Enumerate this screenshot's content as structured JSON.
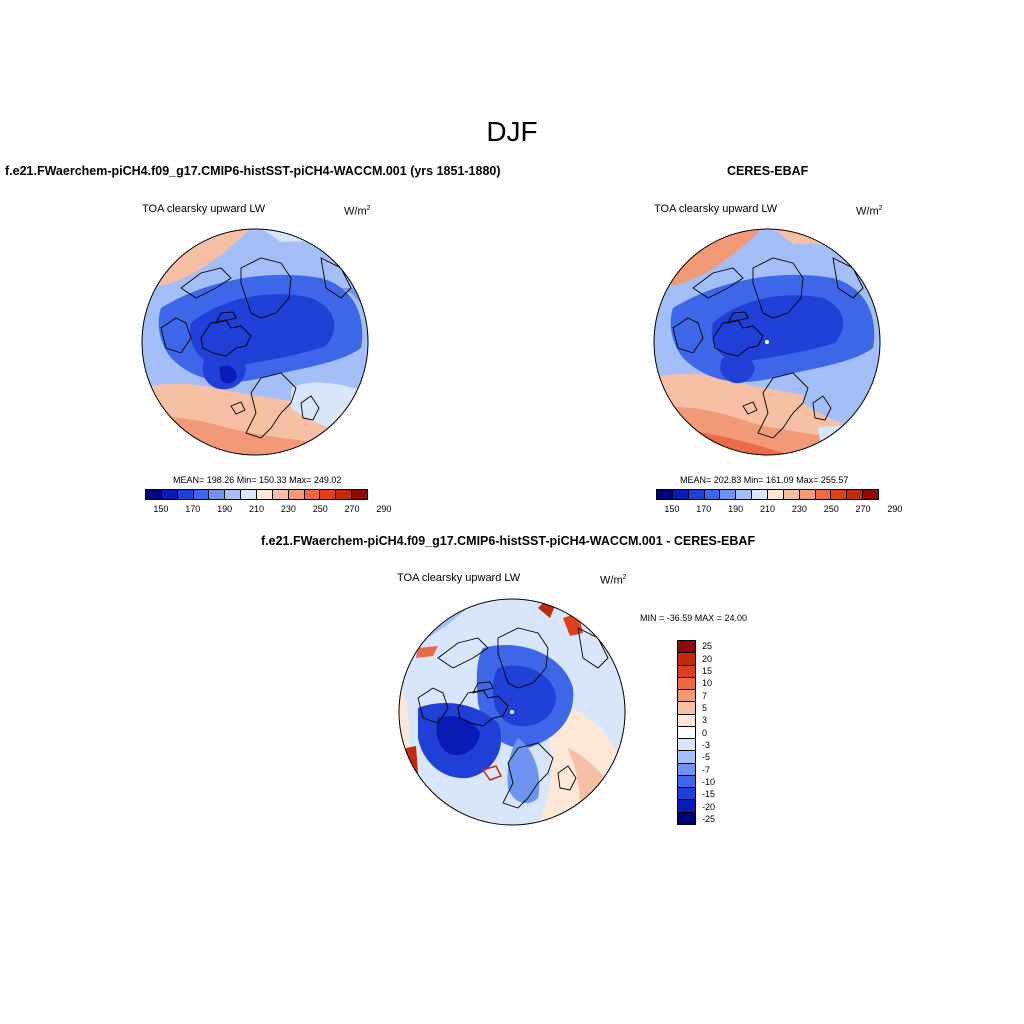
{
  "figure": {
    "season": "DJF"
  },
  "panels": {
    "model": {
      "case_title": "f.e21.FWaerchem-piCH4.f09_g17.CMIP6-histSST-piCH4-WACCM.001 (yrs 1851-1880)",
      "variable": "TOA clearsky upward LW",
      "units": "W/m",
      "units_exp": "2",
      "stats_text": "MEAN= 198.26  Min= 150.33  Max= 249.02",
      "stats": {
        "mean": 198.26,
        "min": 150.33,
        "max": 249.02
      }
    },
    "obs": {
      "case_title": "CERES-EBAF",
      "variable": "TOA clearsky upward LW",
      "units": "W/m",
      "units_exp": "2",
      "stats_text": "MEAN= 202.83  Min= 161.09  Max= 255.57",
      "stats": {
        "mean": 202.83,
        "min": 161.09,
        "max": 255.57
      }
    },
    "diff": {
      "case_title": "f.e21.FWaerchem-piCH4.f09_g17.CMIP6-histSST-piCH4-WACCM.001 - CERES-EBAF",
      "variable": "TOA clearsky upward LW",
      "units": "W/m",
      "units_exp": "2",
      "stats_text": "MIN = -36.59 MAX =  24.00",
      "stats": {
        "min": -36.59,
        "max": 24.0
      }
    }
  },
  "colorbars": {
    "abs": {
      "tick_labels": [
        "150",
        "170",
        "190",
        "210",
        "230",
        "250",
        "270",
        "290"
      ],
      "colors": [
        "#00007f",
        "#0a1ab4",
        "#1f3fd6",
        "#3d66e8",
        "#6f93f0",
        "#a4bff7",
        "#d8e6fb",
        "#fde7d6",
        "#f7c0a4",
        "#f29a78",
        "#ec6a45",
        "#df3f1b",
        "#c22a0c",
        "#8e0a04"
      ]
    },
    "diff": {
      "tick_labels": [
        "25",
        "20",
        "15",
        "10",
        "7",
        "5",
        "3",
        "0",
        "-3",
        "-5",
        "-7",
        "-10",
        "-15",
        "-20",
        "-25"
      ],
      "colors": [
        "#8e0a04",
        "#c22a0c",
        "#df3f1b",
        "#ec6a45",
        "#f29a78",
        "#f7c0a4",
        "#fde7d6",
        "#ffffff",
        "#d8e6fb",
        "#a4bff7",
        "#6f93f0",
        "#3d66e8",
        "#1f3fd6",
        "#0a1ab4",
        "#00007f"
      ]
    }
  },
  "chart_data": [
    {
      "type": "heatmap",
      "projection": "north-polar-stereographic",
      "title": "TOA clearsky upward LW",
      "units": "W/m^2",
      "levels": [
        150,
        160,
        170,
        180,
        190,
        200,
        210,
        220,
        230,
        240,
        250,
        260,
        270,
        280,
        290
      ],
      "mean": 198.26,
      "min": 150.33,
      "max": 249.02
    },
    {
      "type": "heatmap",
      "projection": "north-polar-stereographic",
      "title": "TOA clearsky upward LW",
      "units": "W/m^2",
      "levels": [
        150,
        160,
        170,
        180,
        190,
        200,
        210,
        220,
        230,
        240,
        250,
        260,
        270,
        280,
        290
      ],
      "mean": 202.83,
      "min": 161.09,
      "max": 255.57
    },
    {
      "type": "heatmap",
      "projection": "north-polar-stereographic",
      "title": "TOA clearsky upward LW",
      "units": "W/m^2",
      "levels": [
        -25,
        -20,
        -15,
        -10,
        -7,
        -5,
        -3,
        0,
        3,
        5,
        7,
        10,
        15,
        20,
        25
      ],
      "min": -36.59,
      "max": 24.0
    }
  ]
}
